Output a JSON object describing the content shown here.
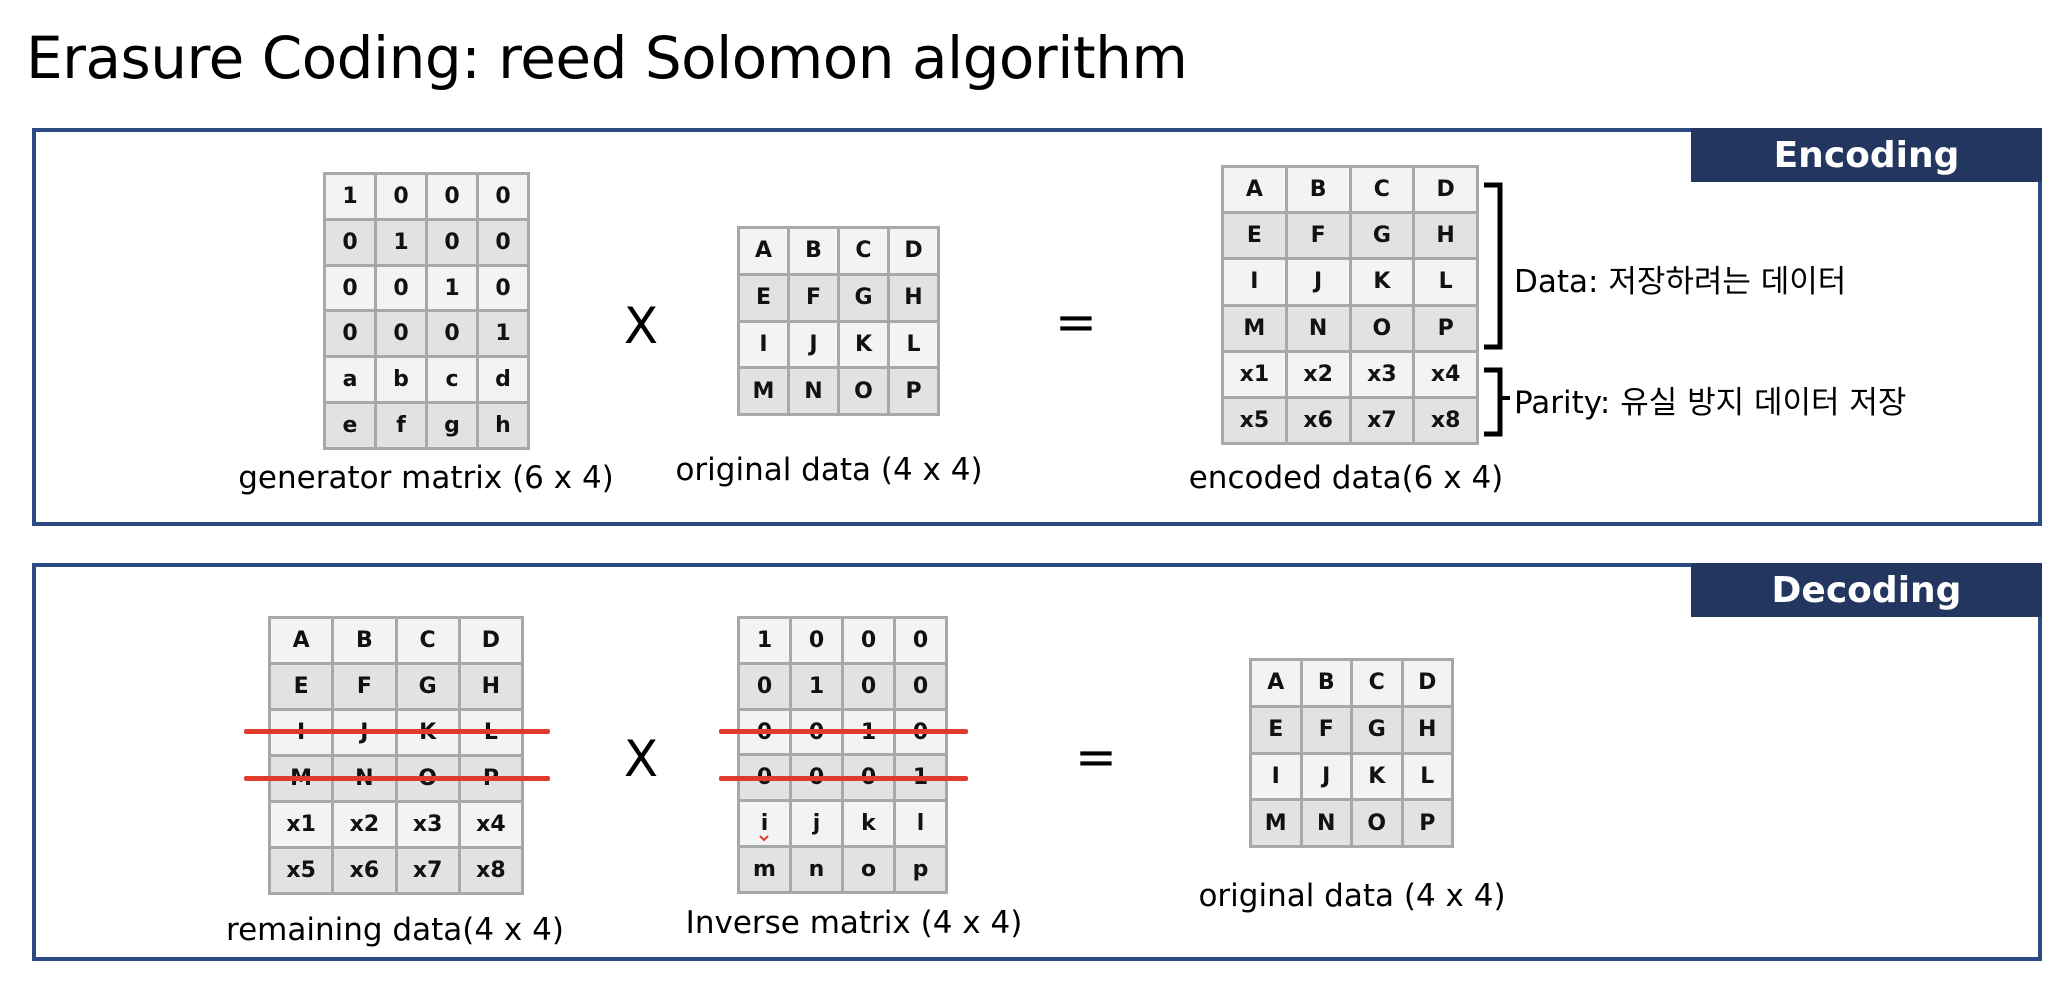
{
  "title": "Erasure Coding: reed Solomon algorithm",
  "encoding": {
    "tag": "Encoding",
    "generator": {
      "caption": "generator matrix (6 x 4)",
      "rows": [
        [
          "1",
          "0",
          "0",
          "0"
        ],
        [
          "0",
          "1",
          "0",
          "0"
        ],
        [
          "0",
          "0",
          "1",
          "0"
        ],
        [
          "0",
          "0",
          "0",
          "1"
        ],
        [
          "a",
          "b",
          "c",
          "d"
        ],
        [
          "e",
          "f",
          "g",
          "h"
        ]
      ]
    },
    "multiply": "X",
    "original": {
      "caption": "original data (4 x 4)",
      "rows": [
        [
          "A",
          "B",
          "C",
          "D"
        ],
        [
          "E",
          "F",
          "G",
          "H"
        ],
        [
          "I",
          "J",
          "K",
          "L"
        ],
        [
          "M",
          "N",
          "O",
          "P"
        ]
      ]
    },
    "equals": "=",
    "encoded": {
      "caption": "encoded data(6 x 4)",
      "rows": [
        [
          "A",
          "B",
          "C",
          "D"
        ],
        [
          "E",
          "F",
          "G",
          "H"
        ],
        [
          "I",
          "J",
          "K",
          "L"
        ],
        [
          "M",
          "N",
          "O",
          "P"
        ],
        [
          "x1",
          "x2",
          "x3",
          "x4"
        ],
        [
          "x5",
          "x6",
          "x7",
          "x8"
        ]
      ]
    },
    "data_label": "Data: 저장하려는 데이터",
    "parity_label": "Parity: 유실 방지 데이터 저장"
  },
  "decoding": {
    "tag": "Decoding",
    "remaining": {
      "caption": "remaining data(4 x 4)",
      "rows": [
        [
          "A",
          "B",
          "C",
          "D"
        ],
        [
          "E",
          "F",
          "G",
          "H"
        ],
        [
          "I",
          "J",
          "K",
          "L"
        ],
        [
          "M",
          "N",
          "O",
          "P"
        ],
        [
          "x1",
          "x2",
          "x3",
          "x4"
        ],
        [
          "x5",
          "x6",
          "x7",
          "x8"
        ]
      ]
    },
    "multiply": "X",
    "inverse": {
      "caption": "Inverse matrix (4 x 4)",
      "rows": [
        [
          "1",
          "0",
          "0",
          "0"
        ],
        [
          "0",
          "1",
          "0",
          "0"
        ],
        [
          "0",
          "0",
          "1",
          "0"
        ],
        [
          "0",
          "0",
          "0",
          "1"
        ],
        [
          "i",
          "j",
          "k",
          "l"
        ],
        [
          "m",
          "n",
          "o",
          "p"
        ]
      ]
    },
    "equals": "=",
    "result": {
      "caption": "original data (4 x 4)",
      "rows": [
        [
          "A",
          "B",
          "C",
          "D"
        ],
        [
          "E",
          "F",
          "G",
          "H"
        ],
        [
          "I",
          "J",
          "K",
          "L"
        ],
        [
          "M",
          "N",
          "O",
          "P"
        ]
      ]
    },
    "strike_color": "#e03a2c"
  }
}
